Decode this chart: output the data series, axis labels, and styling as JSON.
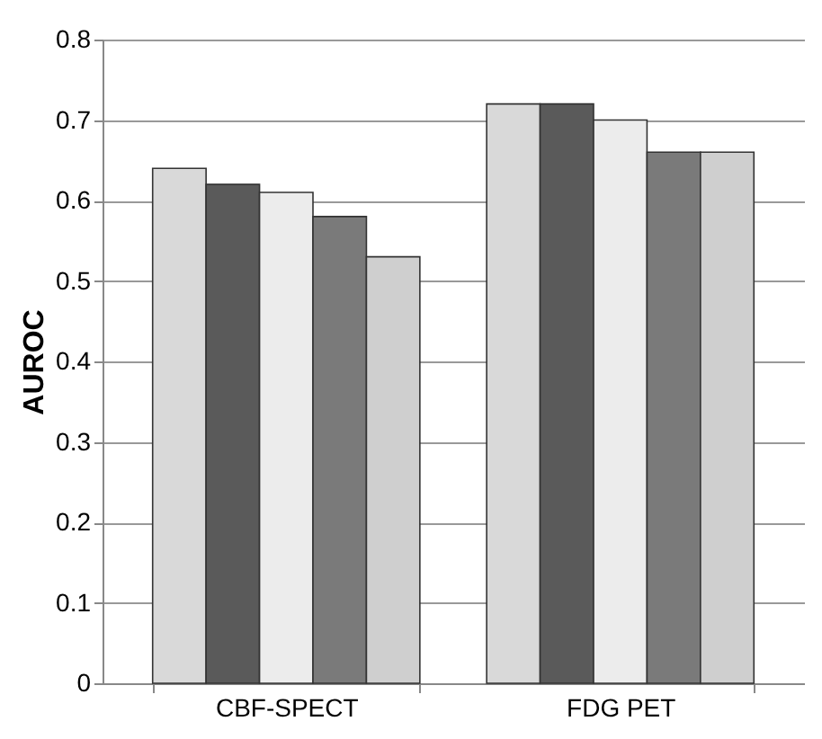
{
  "chart_data": {
    "type": "bar",
    "ylabel": "AUROC",
    "categories": [
      "CBF-SPECT",
      "FDG PET"
    ],
    "series": [
      {
        "color": "#d9d9d9",
        "values": [
          0.64,
          0.72
        ]
      },
      {
        "color": "#5a5a5a",
        "values": [
          0.62,
          0.72
        ]
      },
      {
        "color": "#ececec",
        "values": [
          0.61,
          0.7
        ]
      },
      {
        "color": "#7a7a7a",
        "values": [
          0.58,
          0.66
        ]
      },
      {
        "color": "#cfcfcf",
        "values": [
          0.53,
          0.66
        ]
      }
    ],
    "ylim": [
      0,
      0.8
    ],
    "yticks": [
      0,
      0.1,
      0.2,
      0.3,
      0.4,
      0.5,
      0.6,
      0.7,
      0.8
    ],
    "grid": "y",
    "legend": false
  }
}
